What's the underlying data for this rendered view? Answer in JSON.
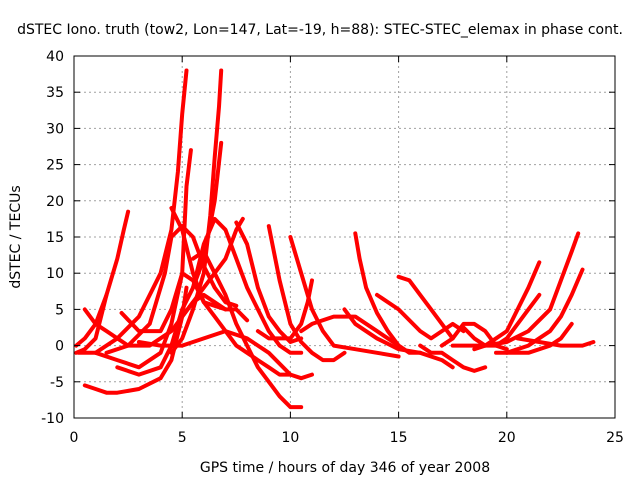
{
  "chart_data": {
    "type": "line",
    "title": "dSTEC Iono. truth (tow2, Lon=147, Lat=-19, h=88): STEC-STEC_elemax in phase cont.",
    "xlabel": "GPS time / hours of day 346 of year 2008",
    "ylabel": "dSTEC  / TECUs",
    "xlim": [
      0,
      25
    ],
    "ylim": [
      -10,
      40
    ],
    "xticks": [
      0,
      5,
      10,
      15,
      20,
      25
    ],
    "yticks": [
      -10,
      -5,
      0,
      5,
      10,
      15,
      20,
      25,
      30,
      35,
      40
    ],
    "grid": true,
    "color": "#ff0000",
    "series": [
      {
        "name": "s1",
        "x": [
          0.1,
          0.5,
          1.0,
          1.5,
          2.0,
          2.3,
          2.5
        ],
        "y": [
          0.0,
          1.0,
          3.0,
          7.0,
          12.0,
          16.0,
          18.5
        ]
      },
      {
        "name": "s2",
        "x": [
          0.1,
          0.5,
          1.0,
          1.5
        ],
        "y": [
          -1.0,
          -0.5,
          1.0,
          7.0
        ]
      },
      {
        "name": "s3",
        "x": [
          0.5,
          1.0,
          1.5,
          2.0,
          3.0,
          4.0,
          4.5,
          5.0,
          5.2
        ],
        "y": [
          -5.5,
          -6.0,
          -6.5,
          -6.5,
          -6.0,
          -4.5,
          -2.0,
          4.0,
          8.0
        ]
      },
      {
        "name": "s4",
        "x": [
          1.0,
          1.5,
          2.0,
          3.0,
          4.0,
          4.5,
          4.8,
          5.0,
          5.2
        ],
        "y": [
          -1.0,
          0.0,
          1.0,
          4.0,
          10.0,
          16.0,
          24.0,
          32.0,
          38.0
        ]
      },
      {
        "name": "s5",
        "x": [
          0.2,
          1.0,
          2.0,
          3.0,
          4.0,
          4.5,
          5.0,
          5.2,
          5.4
        ],
        "y": [
          -1.0,
          -1.0,
          -2.0,
          -3.0,
          -1.0,
          3.0,
          10.0,
          22.0,
          27.0
        ]
      },
      {
        "name": "s6",
        "x": [
          2.0,
          3.0,
          4.0,
          4.5,
          5.0,
          5.5,
          6.0,
          6.5,
          6.8
        ],
        "y": [
          -3.0,
          -4.0,
          -3.0,
          0.0,
          5.0,
          8.0,
          12.0,
          20.0,
          28.0
        ]
      },
      {
        "name": "s7",
        "x": [
          4.5,
          5.0,
          5.5,
          6.0,
          6.3,
          6.5,
          6.7,
          6.8
        ],
        "y": [
          -1.0,
          1.0,
          5.0,
          10.0,
          18.0,
          26.0,
          33.0,
          38.0
        ]
      },
      {
        "name": "s8",
        "x": [
          5.0,
          6.0,
          7.0,
          7.5,
          7.8
        ],
        "y": [
          4.0,
          8.0,
          12.0,
          16.0,
          17.5
        ]
      },
      {
        "name": "s9",
        "x": [
          0.5,
          1.0,
          1.5,
          2.5,
          3.5,
          4.5,
          5.5,
          6.0,
          7.0
        ],
        "y": [
          5.0,
          3.0,
          2.0,
          0.0,
          0.0,
          2.0,
          6.0,
          7.0,
          5.0
        ]
      },
      {
        "name": "s10",
        "x": [
          1.5,
          2.5,
          3.5,
          4.2,
          4.5,
          5.0,
          5.5,
          6.0,
          6.5,
          7.0,
          7.5
        ],
        "y": [
          -1.0,
          0.0,
          3.0,
          10.0,
          15.0,
          16.5,
          15.0,
          11.0,
          8.0,
          6.0,
          5.5
        ]
      },
      {
        "name": "s11",
        "x": [
          2.2,
          3.0,
          4.0,
          4.5,
          5.0,
          5.5,
          6.0,
          6.5,
          7.0,
          7.5,
          8.0
        ],
        "y": [
          4.5,
          2.0,
          2.0,
          5.0,
          10.0,
          9.0,
          6.0,
          5.5,
          5.0,
          5.0,
          3.5
        ]
      },
      {
        "name": "s12",
        "x": [
          4.5,
          5.0,
          5.5,
          6.0,
          6.5,
          7.0,
          7.5,
          8.0,
          8.5,
          9.0,
          9.5,
          10.0
        ],
        "y": [
          19.0,
          16.0,
          10.0,
          6.0,
          4.0,
          2.0,
          0.0,
          -1.0,
          -2.0,
          -3.0,
          -4.0,
          -4.0
        ]
      },
      {
        "name": "s13",
        "x": [
          3.0,
          4.0,
          5.0,
          6.0,
          7.0,
          8.0,
          9.0,
          10.0,
          10.5,
          11.0
        ],
        "y": [
          0.5,
          0.0,
          0.0,
          1.0,
          2.0,
          1.0,
          -1.0,
          -4.0,
          -4.5,
          -4.0
        ]
      },
      {
        "name": "s14",
        "x": [
          5.5,
          6.0,
          6.5,
          7.0,
          7.5,
          8.0,
          8.5,
          9.0,
          9.5,
          10.0,
          10.5
        ],
        "y": [
          12.0,
          13.0,
          10.0,
          7.0,
          3.0,
          0.0,
          -3.0,
          -5.0,
          -7.0,
          -8.5,
          -8.5
        ]
      },
      {
        "name": "s15",
        "x": [
          5.5,
          6.0,
          6.5,
          7.0,
          7.5,
          8.0,
          8.5,
          9.0,
          9.5,
          10.0,
          10.5
        ],
        "y": [
          8.0,
          14.0,
          17.5,
          16.0,
          12.0,
          8.0,
          5.0,
          2.0,
          0.0,
          -1.0,
          -1.0
        ]
      },
      {
        "name": "s16",
        "x": [
          7.5,
          8.0,
          8.5,
          9.0,
          9.5,
          10.0,
          10.5
        ],
        "y": [
          17.0,
          14.0,
          8.0,
          4.0,
          2.0,
          0.5,
          1.0
        ]
      },
      {
        "name": "s17",
        "x": [
          9.0,
          9.5,
          10.0,
          10.5,
          11.0,
          11.5,
          12.0,
          12.5
        ],
        "y": [
          16.5,
          9.0,
          3.0,
          0.5,
          -1.0,
          -2.0,
          -2.0,
          -1.0
        ]
      },
      {
        "name": "s18",
        "x": [
          10.0,
          10.5,
          11.0,
          11.5,
          12.0,
          13.0,
          14.0,
          15.0
        ],
        "y": [
          15.0,
          10.0,
          5.0,
          2.0,
          0.0,
          -0.5,
          -1.0,
          -1.5
        ]
      },
      {
        "name": "s19",
        "x": [
          11.0,
          10.8,
          10.5,
          10.0,
          9.5,
          9.0,
          8.5
        ],
        "y": [
          9.0,
          6.0,
          3.0,
          1.0,
          1.0,
          1.0,
          2.0
        ]
      },
      {
        "name": "s20",
        "x": [
          10.5,
          11.0,
          12.0,
          13.0,
          14.0,
          15.0
        ],
        "y": [
          2.0,
          3.0,
          4.0,
          4.0,
          2.0,
          0.0
        ]
      },
      {
        "name": "s21",
        "x": [
          12.5,
          13.0,
          14.0,
          15.0,
          16.0,
          17.0,
          17.5
        ],
        "y": [
          5.0,
          3.0,
          1.0,
          -0.5,
          -1.0,
          -2.0,
          -3.0
        ]
      },
      {
        "name": "s22",
        "x": [
          13.0,
          13.2,
          13.5,
          14.0,
          14.5,
          15.0,
          15.5,
          16.0
        ],
        "y": [
          15.5,
          12.0,
          8.0,
          4.5,
          2.0,
          0.0,
          -1.0,
          -1.0
        ]
      },
      {
        "name": "s23",
        "x": [
          14.0,
          15.0,
          16.0,
          16.5,
          17.0,
          17.5,
          18.0
        ],
        "y": [
          7.0,
          5.0,
          2.0,
          1.0,
          2.0,
          3.0,
          2.0
        ]
      },
      {
        "name": "s24",
        "x": [
          15.0,
          15.5,
          16.0,
          16.5,
          17.0,
          17.5
        ],
        "y": [
          9.5,
          9.0,
          7.0,
          5.0,
          3.0,
          1.0
        ]
      },
      {
        "name": "s25",
        "x": [
          16.0,
          16.5,
          17.0,
          17.5,
          18.0,
          18.5,
          19.0
        ],
        "y": [
          0.0,
          -1.0,
          -1.0,
          -2.0,
          -3.0,
          -3.5,
          -3.0
        ]
      },
      {
        "name": "s26",
        "x": [
          17.0,
          17.5,
          18.0,
          18.5,
          19.0,
          19.5,
          20.0
        ],
        "y": [
          0.0,
          1.0,
          3.0,
          3.0,
          2.0,
          0.0,
          -0.5
        ]
      },
      {
        "name": "s27",
        "x": [
          18.0,
          18.5,
          19.0,
          19.5,
          20.0,
          20.5,
          21.0,
          21.5
        ],
        "y": [
          2.5,
          1.0,
          0.0,
          0.0,
          1.0,
          3.0,
          5.0,
          7.0
        ]
      },
      {
        "name": "s28",
        "x": [
          18.5,
          19.0,
          19.5,
          20.0,
          20.5,
          21.0,
          21.5
        ],
        "y": [
          -0.5,
          0.0,
          1.0,
          2.0,
          5.0,
          8.0,
          11.5
        ]
      },
      {
        "name": "s29",
        "x": [
          17.5,
          18.0,
          19.0,
          20.0,
          21.0,
          22.0,
          22.5,
          23.0,
          23.3
        ],
        "y": [
          0.0,
          0.0,
          0.0,
          0.5,
          2.0,
          5.0,
          9.0,
          13.0,
          15.5
        ]
      },
      {
        "name": "s30",
        "x": [
          19.5,
          20.0,
          21.0,
          22.0,
          22.5,
          23.0,
          23.5
        ],
        "y": [
          -1.0,
          -1.0,
          0.0,
          2.0,
          4.0,
          7.0,
          10.5
        ]
      },
      {
        "name": "s31",
        "x": [
          20.0,
          21.0,
          22.0,
          22.5,
          23.0
        ],
        "y": [
          -1.0,
          -1.0,
          0.0,
          1.0,
          3.0
        ]
      },
      {
        "name": "s32",
        "x": [
          20.5,
          21.5,
          22.5,
          23.0,
          23.5,
          24.0
        ],
        "y": [
          1.0,
          0.5,
          0.0,
          0.0,
          0.0,
          0.5
        ]
      }
    ]
  }
}
